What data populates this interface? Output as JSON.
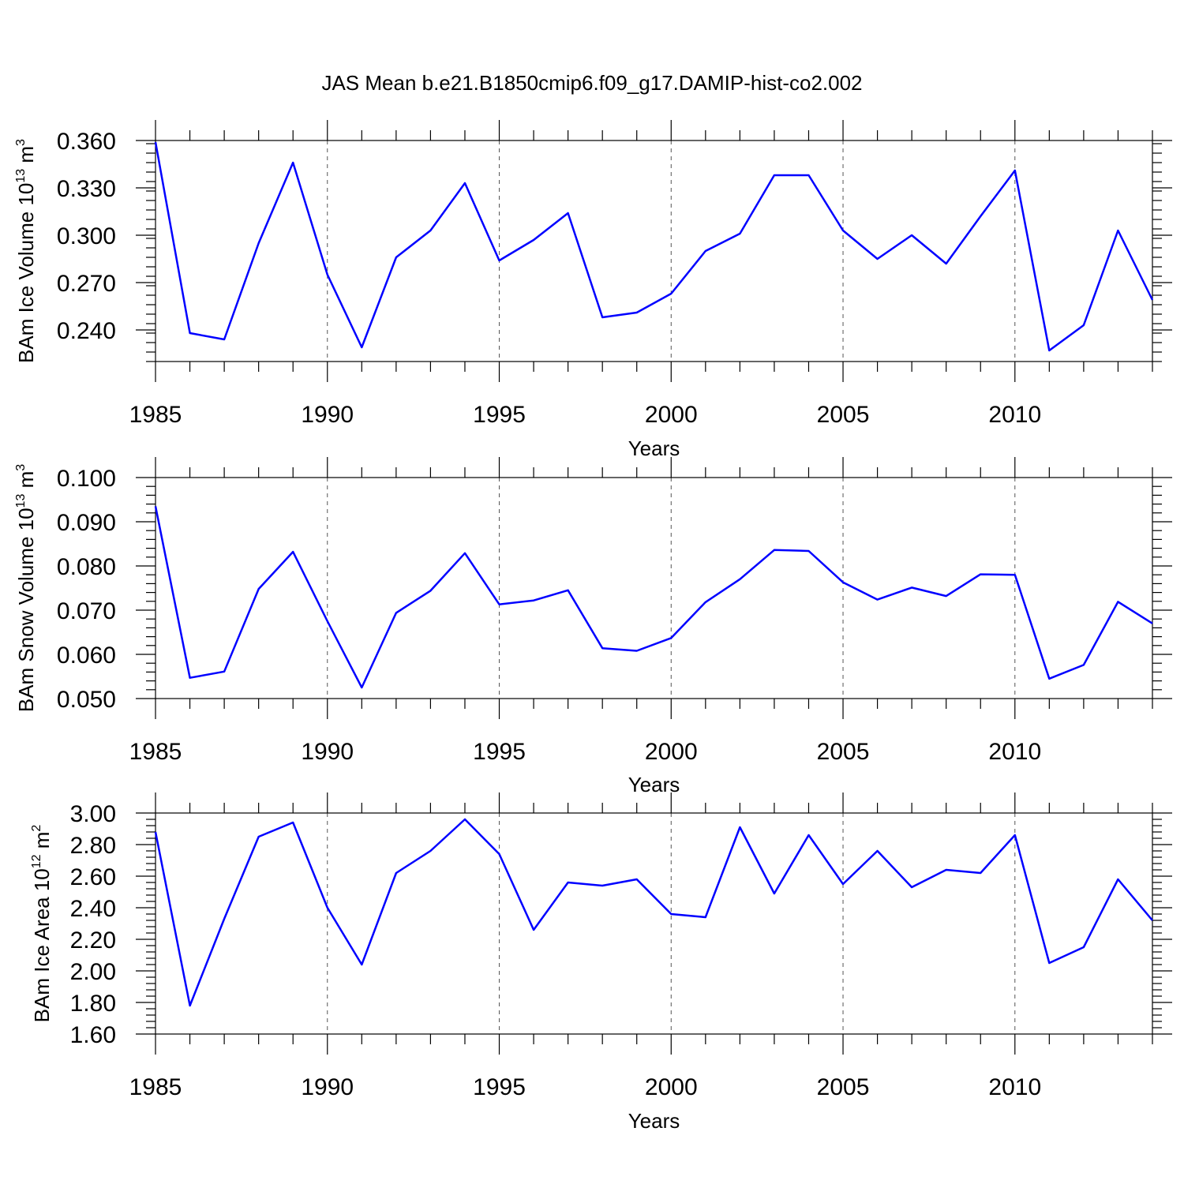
{
  "title": "JAS Mean b.e21.B1850cmip6.f09_g17.DAMIP-hist-co2.002",
  "line_color": "#0000ff",
  "chart_data": [
    {
      "type": "line",
      "ylabel_main": "BAm Ice Volume 10",
      "ylabel_exp": "13",
      "ylabel_unit": " m",
      "ylabel_unit_exp": "3",
      "xlabel": "Years",
      "xlim": [
        1985,
        2014
      ],
      "ylim": [
        0.22,
        0.36
      ],
      "xticks": [
        1985,
        1990,
        1995,
        2000,
        2005,
        2010
      ],
      "xtick_labels": [
        "1985",
        "1990",
        "1995",
        "2000",
        "2005",
        "2010"
      ],
      "yticks": [
        0.24,
        0.27,
        0.3,
        0.33,
        0.36
      ],
      "ytick_labels": [
        "0.240",
        "0.270",
        "0.300",
        "0.330",
        "0.360"
      ],
      "yminor_step": 0.006,
      "grid_x": true,
      "x": [
        1985,
        1986,
        1987,
        1988,
        1989,
        1990,
        1991,
        1992,
        1993,
        1994,
        1995,
        1996,
        1997,
        1998,
        1999,
        2000,
        2001,
        2002,
        2003,
        2004,
        2005,
        2006,
        2007,
        2008,
        2009,
        2010,
        2011,
        2012,
        2013,
        2014
      ],
      "values": [
        0.359,
        0.238,
        0.234,
        0.295,
        0.346,
        0.275,
        0.229,
        0.286,
        0.303,
        0.333,
        0.284,
        0.297,
        0.314,
        0.248,
        0.251,
        0.263,
        0.29,
        0.301,
        0.338,
        0.338,
        0.303,
        0.285,
        0.3,
        0.282,
        0.312,
        0.341,
        0.227,
        0.243,
        0.303,
        0.259
      ]
    },
    {
      "type": "line",
      "ylabel_main": "BAm Snow Volume 10",
      "ylabel_exp": "13",
      "ylabel_unit": " m",
      "ylabel_unit_exp": "3",
      "xlabel": "Years",
      "xlim": [
        1985,
        2014
      ],
      "ylim": [
        0.05,
        0.1
      ],
      "xticks": [
        1985,
        1990,
        1995,
        2000,
        2005,
        2010
      ],
      "xtick_labels": [
        "1985",
        "1990",
        "1995",
        "2000",
        "2005",
        "2010"
      ],
      "yticks": [
        0.05,
        0.06,
        0.07,
        0.08,
        0.09,
        0.1
      ],
      "ytick_labels": [
        "0.050",
        "0.060",
        "0.070",
        "0.080",
        "0.090",
        "0.100"
      ],
      "yminor_step": 0.002,
      "grid_x": true,
      "x": [
        1985,
        1986,
        1987,
        1988,
        1989,
        1990,
        1991,
        1992,
        1993,
        1994,
        1995,
        1996,
        1997,
        1998,
        1999,
        2000,
        2001,
        2002,
        2003,
        2004,
        2005,
        2006,
        2007,
        2008,
        2009,
        2010,
        2011,
        2012,
        2013,
        2014
      ],
      "values": [
        0.0935,
        0.0547,
        0.0561,
        0.0748,
        0.0832,
        0.0675,
        0.0525,
        0.0694,
        0.0744,
        0.0829,
        0.0713,
        0.0722,
        0.0745,
        0.0614,
        0.0608,
        0.0637,
        0.0718,
        0.077,
        0.0836,
        0.0834,
        0.0763,
        0.0724,
        0.0751,
        0.0732,
        0.0781,
        0.078,
        0.0545,
        0.0576,
        0.0719,
        0.067
      ]
    },
    {
      "type": "line",
      "ylabel_main": "BAm Ice Area 10",
      "ylabel_exp": "12",
      "ylabel_unit": " m",
      "ylabel_unit_exp": "2",
      "xlabel": "Years",
      "xlim": [
        1985,
        2014
      ],
      "ylim": [
        1.6,
        3.0
      ],
      "xticks": [
        1985,
        1990,
        1995,
        2000,
        2005,
        2010
      ],
      "xtick_labels": [
        "1985",
        "1990",
        "1995",
        "2000",
        "2005",
        "2010"
      ],
      "yticks": [
        1.6,
        1.8,
        2.0,
        2.2,
        2.4,
        2.6,
        2.8,
        3.0
      ],
      "ytick_labels": [
        "1.60",
        "1.80",
        "2.00",
        "2.20",
        "2.40",
        "2.60",
        "2.80",
        "3.00"
      ],
      "yminor_step": 0.04,
      "grid_x": true,
      "x": [
        1985,
        1986,
        1987,
        1988,
        1989,
        1990,
        1991,
        1992,
        1993,
        1994,
        1995,
        1996,
        1997,
        1998,
        1999,
        2000,
        2001,
        2002,
        2003,
        2004,
        2005,
        2006,
        2007,
        2008,
        2009,
        2010,
        2011,
        2012,
        2013,
        2014
      ],
      "values": [
        2.88,
        1.78,
        2.33,
        2.85,
        2.94,
        2.4,
        2.04,
        2.62,
        2.76,
        2.96,
        2.74,
        2.26,
        2.56,
        2.54,
        2.58,
        2.36,
        2.34,
        2.91,
        2.49,
        2.86,
        2.55,
        2.76,
        2.53,
        2.64,
        2.62,
        2.86,
        2.05,
        2.15,
        2.58,
        2.32
      ]
    }
  ]
}
